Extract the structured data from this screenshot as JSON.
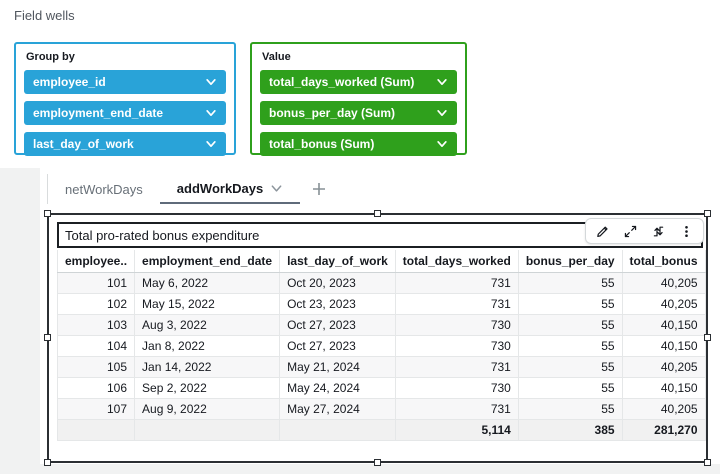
{
  "field_wells": {
    "title": "Field wells",
    "group_by": {
      "label": "Group by",
      "color": "#29A3D8",
      "fields": [
        "employee_id",
        "employment_end_date",
        "last_day_of_work"
      ]
    },
    "value": {
      "label": "Value",
      "color": "#2FA01C",
      "fields": [
        "total_days_worked (Sum)",
        "bonus_per_day (Sum)",
        "total_bonus (Sum)"
      ]
    }
  },
  "sheet_tabs": {
    "tabs": [
      {
        "label": "netWorkDays",
        "active": false
      },
      {
        "label": "addWorkDays",
        "active": true
      }
    ],
    "add_button": "+"
  },
  "visual": {
    "title": "Total pro-rated bonus expenditure",
    "toolbar_icons": [
      "edit-pencil",
      "maximize",
      "swap-arrows",
      "menu-kebab"
    ]
  },
  "chart_data": {
    "type": "table",
    "title": "Total pro-rated bonus expenditure",
    "columns": [
      "employee..",
      "employment_end_date",
      "last_day_of_work",
      "total_days_worked",
      "bonus_per_day",
      "total_bonus"
    ],
    "rows": [
      [
        "101",
        "May 6, 2022",
        "Oct 20, 2023",
        "731",
        "55",
        "40,205"
      ],
      [
        "102",
        "May 15, 2022",
        "Oct 23, 2023",
        "731",
        "55",
        "40,205"
      ],
      [
        "103",
        "Aug 3, 2022",
        "Oct 27, 2023",
        "730",
        "55",
        "40,150"
      ],
      [
        "104",
        "Jan 8, 2022",
        "Oct 27, 2023",
        "730",
        "55",
        "40,150"
      ],
      [
        "105",
        "Jan 14, 2022",
        "May 21, 2024",
        "731",
        "55",
        "40,205"
      ],
      [
        "106",
        "Sep 2, 2022",
        "May 24, 2024",
        "730",
        "55",
        "40,150"
      ],
      [
        "107",
        "Aug 9, 2022",
        "May 27, 2024",
        "731",
        "55",
        "40,205"
      ]
    ],
    "totals": [
      "",
      "",
      "",
      "5,114",
      "385",
      "281,270"
    ]
  }
}
